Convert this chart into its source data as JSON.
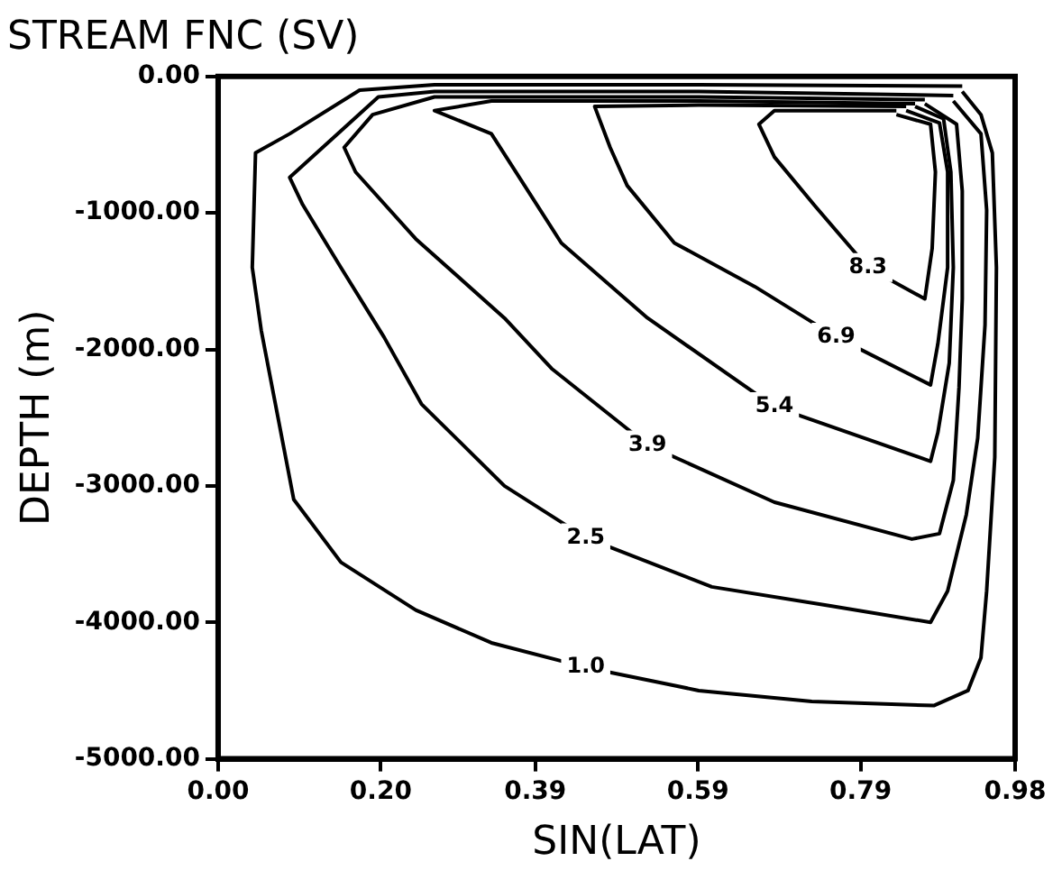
{
  "chart_data": {
    "type": "line",
    "title": "STREAM FNC (SV)",
    "xlabel": "SIN(LAT)",
    "ylabel": "DEPTH (m)",
    "xlim": [
      0,
      0.98
    ],
    "xticks": [
      {
        "value": 0,
        "label": "0.00"
      },
      {
        "value": 0.2,
        "label": "0.20"
      },
      {
        "value": 0.39,
        "label": "0.39"
      },
      {
        "value": 0.59,
        "label": "0.59"
      },
      {
        "value": 0.79,
        "label": "0.79"
      },
      {
        "value": 0.98,
        "label": "0.98"
      }
    ],
    "ylim": [
      -5000,
      0
    ],
    "yticks": [
      {
        "value": -5000,
        "label": "-5000.00"
      },
      {
        "value": -4000,
        "label": "-4000.00"
      },
      {
        "value": -3000,
        "label": "-3000.00"
      },
      {
        "value": -2000,
        "label": "-2000.00"
      },
      {
        "value": -1000,
        "label": "-1000.00"
      },
      {
        "value": 0,
        "label": "0.00"
      }
    ],
    "grid": false,
    "legend": false,
    "marker": "none",
    "line_style": "solid",
    "series": [
      {
        "name": "1.0",
        "color": "#000000",
        "x": [
          0.915,
          0.591,
          0.266,
          0.174,
          0.088,
          0.046,
          0.042,
          0.053,
          0.093,
          0.151,
          0.243,
          0.336,
          0.452,
          0.591,
          0.73,
          0.88,
          0.922,
          0.938,
          0.945,
          0.955,
          0.957,
          0.952,
          0.938,
          0.915
        ],
        "values": [
          -70,
          -60,
          -60,
          -100,
          -420,
          -560,
          -1400,
          -1860,
          -3100,
          -3560,
          -3910,
          -4150,
          -4330,
          -4500,
          -4580,
          -4610,
          -4500,
          -4260,
          -3770,
          -2790,
          -1400,
          -560,
          -280,
          -110
        ]
      },
      {
        "name": "2.5",
        "color": "#000000",
        "x": [
          0.904,
          0.591,
          0.266,
          0.197,
          0.088,
          0.104,
          0.151,
          0.204,
          0.25,
          0.352,
          0.452,
          0.607,
          0.753,
          0.876,
          0.897,
          0.92,
          0.934,
          0.943,
          0.945,
          0.938,
          0.904
        ],
        "values": [
          -140,
          -110,
          -110,
          -150,
          -740,
          -940,
          -1400,
          -1910,
          -2400,
          -3000,
          -3380,
          -3740,
          -3880,
          -4000,
          -3770,
          -3210,
          -2650,
          -1820,
          -980,
          -420,
          -180
        ]
      },
      {
        "name": "3.9",
        "color": "#000000",
        "x": [
          0.869,
          0.591,
          0.266,
          0.19,
          0.155,
          0.169,
          0.243,
          0.352,
          0.41,
          0.528,
          0.684,
          0.853,
          0.887,
          0.904,
          0.911,
          0.915,
          0.915,
          0.908,
          0.869
        ],
        "values": [
          -170,
          -150,
          -150,
          -280,
          -520,
          -700,
          -1190,
          -1770,
          -2140,
          -2700,
          -3120,
          -3390,
          -3350,
          -2960,
          -2280,
          -1630,
          -840,
          -350,
          -200
        ]
      },
      {
        "name": "5.4",
        "color": "#000000",
        "x": [
          0.857,
          0.591,
          0.336,
          0.266,
          0.336,
          0.422,
          0.528,
          0.684,
          0.876,
          0.885,
          0.899,
          0.904,
          0.901,
          0.892,
          0.857
        ],
        "values": [
          -200,
          -180,
          -180,
          -250,
          -420,
          -1220,
          -1770,
          -2420,
          -2820,
          -2610,
          -2100,
          -1400,
          -700,
          -310,
          -220
        ]
      },
      {
        "name": "6.9",
        "color": "#000000",
        "x": [
          0.846,
          0.591,
          0.463,
          0.482,
          0.503,
          0.561,
          0.66,
          0.76,
          0.876,
          0.885,
          0.897,
          0.897,
          0.887,
          0.846
        ],
        "values": [
          -220,
          -210,
          -220,
          -520,
          -800,
          -1220,
          -1540,
          -1910,
          -2260,
          -1960,
          -1400,
          -700,
          -340,
          -250
        ]
      },
      {
        "name": "8.3",
        "color": "#000000",
        "x": [
          0.834,
          0.684,
          0.665,
          0.684,
          0.734,
          0.799,
          0.869,
          0.878,
          0.882,
          0.876,
          0.834
        ],
        "values": [
          -250,
          -250,
          -350,
          -590,
          -950,
          -1400,
          -1630,
          -1260,
          -700,
          -350,
          -280
        ]
      }
    ]
  }
}
